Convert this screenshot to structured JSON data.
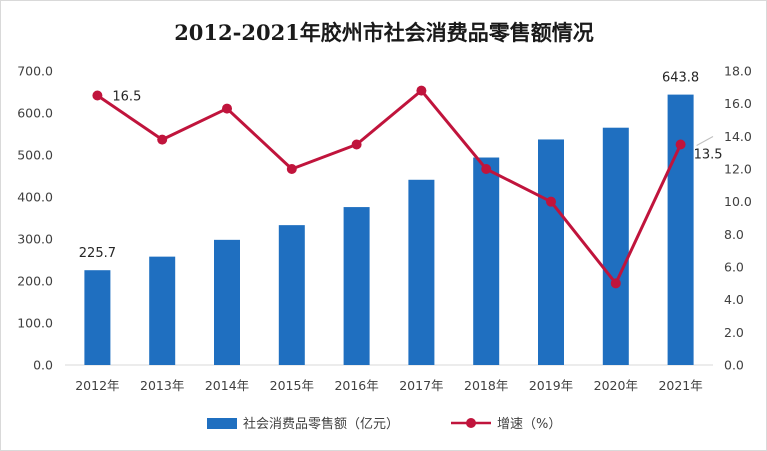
{
  "chart_data": {
    "type": "bar",
    "title": "2012-2021年胶州市社会消费品零售额情况",
    "categories": [
      "2012年",
      "2013年",
      "2014年",
      "2015年",
      "2016年",
      "2017年",
      "2018年",
      "2019年",
      "2020年",
      "2021年"
    ],
    "series": [
      {
        "name": "社会消费品零售额（亿元）",
        "type": "bar",
        "axis": "left",
        "color": "#1f6fc0",
        "values": [
          225.7,
          258,
          298,
          333,
          376,
          441,
          494,
          537,
          565,
          643.8
        ]
      },
      {
        "name": "增速（%）",
        "type": "line",
        "axis": "right",
        "color": "#c0143c",
        "values": [
          16.5,
          13.8,
          15.7,
          12.0,
          13.5,
          16.8,
          12.0,
          10.0,
          5.0,
          13.5
        ]
      }
    ],
    "y_left": {
      "min": 0,
      "max": 700,
      "step": 100,
      "tick_labels": [
        "0.0",
        "100.0",
        "200.0",
        "300.0",
        "400.0",
        "500.0",
        "600.0",
        "700.0"
      ]
    },
    "y_right": {
      "min": 0,
      "max": 18,
      "step": 2,
      "tick_labels": [
        "0.0",
        "2.0",
        "4.0",
        "6.0",
        "8.0",
        "10.0",
        "12.0",
        "14.0",
        "16.0",
        "18.0"
      ]
    },
    "data_labels": [
      {
        "series": 0,
        "index": 0,
        "text": "225.7",
        "position": "above"
      },
      {
        "series": 0,
        "index": 9,
        "text": "643.8",
        "position": "above"
      },
      {
        "series": 1,
        "index": 0,
        "text": "16.5",
        "position": "right"
      },
      {
        "series": 1,
        "index": 9,
        "text": "13.5",
        "position": "below-right"
      }
    ],
    "grid": false,
    "legend_position": "bottom"
  }
}
